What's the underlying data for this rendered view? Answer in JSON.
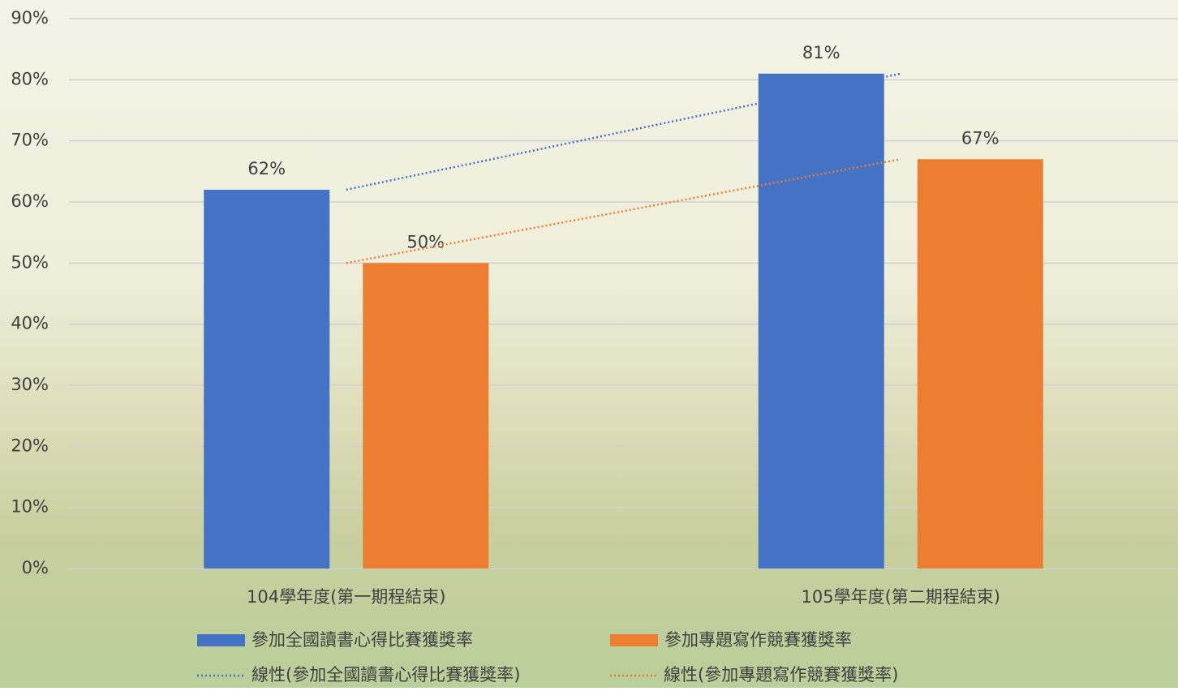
{
  "chart_data": {
    "type": "bar",
    "categories": [
      "104學年度(第一期程結束)",
      "105學年度(第二期程結束)"
    ],
    "series": [
      {
        "name": "參加全國讀書心得比賽獲獎率",
        "color": "#4472c4",
        "values": [
          62,
          81
        ],
        "value_labels": [
          "62%",
          "81%"
        ],
        "trendline_name": "線性(參加全國讀書心得比賽獲獎率)"
      },
      {
        "name": "參加專題寫作競賽獲獎率",
        "color": "#ed7d31",
        "values": [
          50,
          67
        ],
        "value_labels": [
          "50%",
          "67%"
        ],
        "trendline_name": "線性(參加專題寫作競賽獲獎率)"
      }
    ],
    "ylim": [
      0,
      90
    ],
    "yticks": [
      {
        "value": 0,
        "label": "0%"
      },
      {
        "value": 10,
        "label": "10%"
      },
      {
        "value": 20,
        "label": "20%"
      },
      {
        "value": 30,
        "label": "30%"
      },
      {
        "value": 40,
        "label": "40%"
      },
      {
        "value": 50,
        "label": "50%"
      },
      {
        "value": 60,
        "label": "60%"
      },
      {
        "value": 70,
        "label": "70%"
      },
      {
        "value": 80,
        "label": "80%"
      },
      {
        "value": 90,
        "label": "90%"
      }
    ],
    "grid": true,
    "legend": "bottom"
  }
}
